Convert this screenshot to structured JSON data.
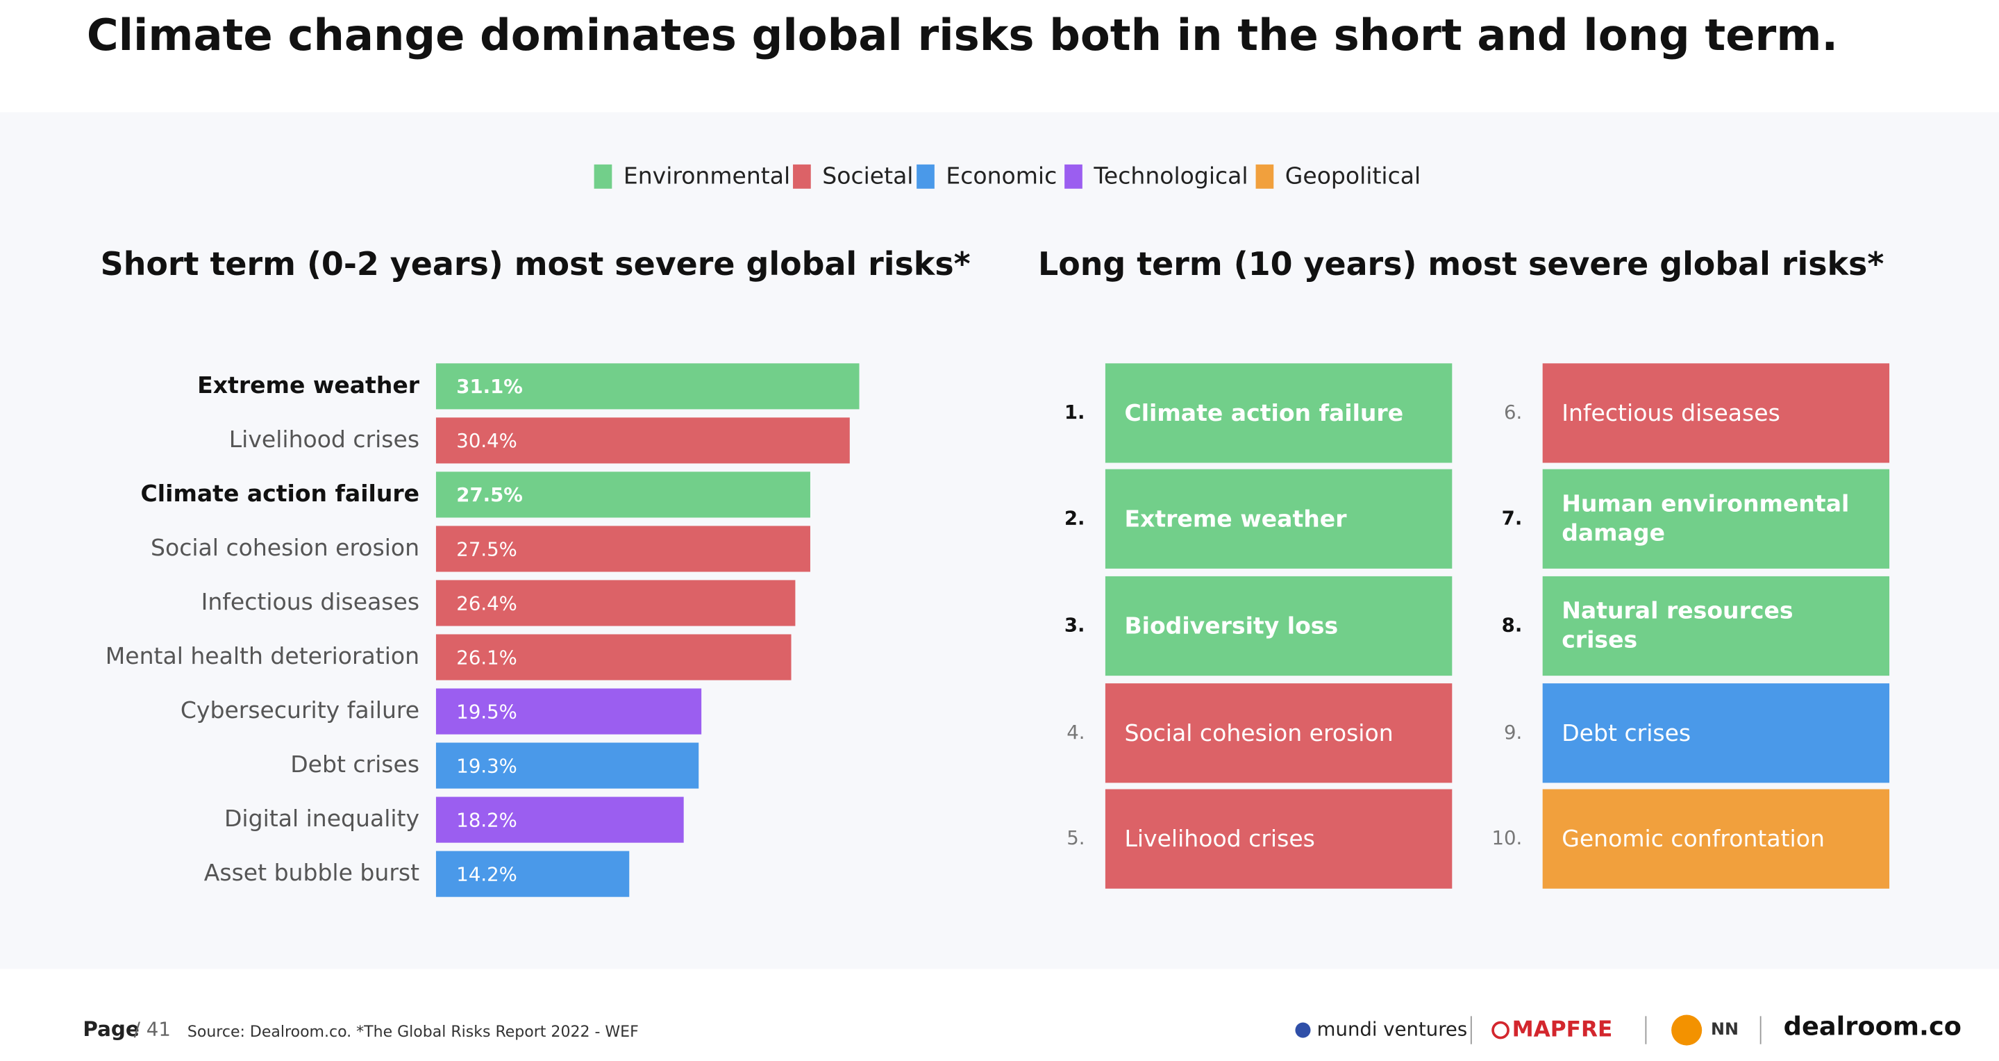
{
  "title": "Climate change dominates global risks both in the short and long term.",
  "legend": [
    {
      "name": "Environmental",
      "color": "#72cf8a"
    },
    {
      "name": "Societal",
      "color": "#dc6267"
    },
    {
      "name": "Economic",
      "color": "#4a99e9"
    },
    {
      "name": "Technological",
      "color": "#9b5ef0"
    },
    {
      "name": "Geopolitical",
      "color": "#f1a03d"
    }
  ],
  "chart_data": {
    "type": "bar",
    "orientation": "horizontal",
    "title": "Short term (0-2 years) most severe global risks*",
    "categories": [
      "Extreme weather",
      "Livelihood crises",
      "Climate action failure",
      "Social cohesion erosion",
      "Infectious diseases",
      "Mental health deterioration",
      "Cybersecurity failure",
      "Debt crises",
      "Digital inequality",
      "Asset bubble burst"
    ],
    "values": [
      31.1,
      30.4,
      27.5,
      27.5,
      26.4,
      26.1,
      19.5,
      19.3,
      18.2,
      14.2
    ],
    "value_labels": [
      "31.1%",
      "30.4%",
      "27.5%",
      "27.5%",
      "26.4%",
      "26.1%",
      "19.5%",
      "19.3%",
      "18.2%",
      "14.2%"
    ],
    "colors": [
      "#72cf8a",
      "#dc6267",
      "#72cf8a",
      "#dc6267",
      "#dc6267",
      "#dc6267",
      "#9b5ef0",
      "#4a99e9",
      "#9b5ef0",
      "#4a99e9"
    ],
    "bold": [
      true,
      false,
      true,
      false,
      false,
      false,
      false,
      false,
      false,
      false
    ]
  },
  "long_term": {
    "title": "Long term (10 years) most severe global risks*",
    "items": [
      {
        "rank": "1.",
        "label": "Climate action failure",
        "color": "#72cf8a",
        "bold": true
      },
      {
        "rank": "2.",
        "label": "Extreme weather",
        "color": "#72cf8a",
        "bold": true
      },
      {
        "rank": "3.",
        "label": "Biodiversity loss",
        "color": "#72cf8a",
        "bold": true
      },
      {
        "rank": "4.",
        "label": "Social cohesion erosion",
        "color": "#dc6267",
        "bold": false
      },
      {
        "rank": "5.",
        "label": "Livelihood crises",
        "color": "#dc6267",
        "bold": false
      },
      {
        "rank": "6.",
        "label": "Infectious diseases",
        "color": "#dc6267",
        "bold": false
      },
      {
        "rank": "7.",
        "label": "Human environmental damage",
        "color": "#72cf8a",
        "bold": true
      },
      {
        "rank": "8.",
        "label": "Natural resources crises",
        "color": "#72cf8a",
        "bold": true
      },
      {
        "rank": "9.",
        "label": "Debt crises",
        "color": "#4a99e9",
        "bold": false
      },
      {
        "rank": "10.",
        "label": "Genomic confrontation",
        "color": "#f1a03d",
        "bold": false
      }
    ]
  },
  "footer": {
    "page_label": "Page",
    "page_number": "/ 41",
    "source": "Source: Dealroom.co. *The Global Risks Report 2022 - WEF",
    "logos": [
      "mundi ventures",
      "MAPFRE",
      "NN",
      "dealroom.co"
    ]
  }
}
